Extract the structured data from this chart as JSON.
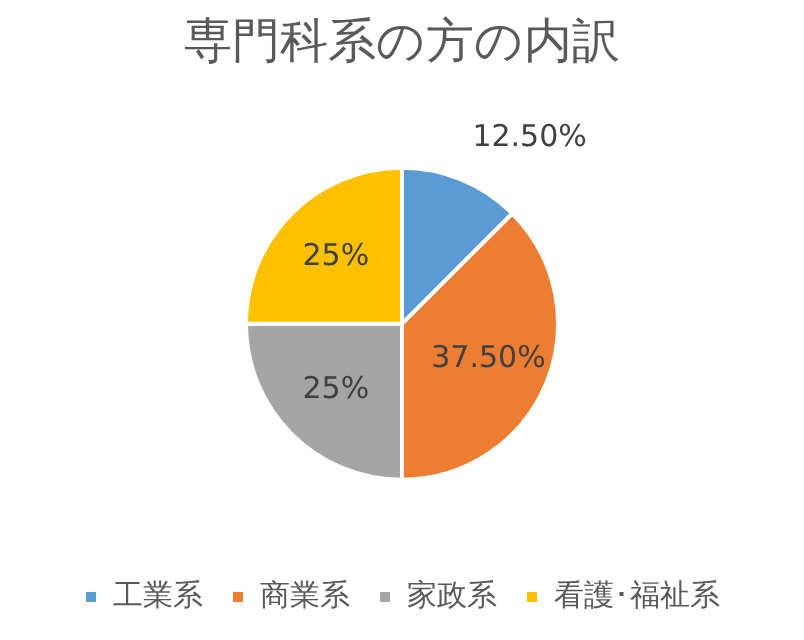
{
  "chart_data": {
    "type": "pie",
    "title": "専門科系の方の内訳",
    "categories": [
      "工業系",
      "商業系",
      "家政系",
      "看護･福祉系"
    ],
    "values": [
      12.5,
      37.5,
      25,
      25
    ],
    "colors": [
      "#5b9bd5",
      "#ed7d31",
      "#a5a5a5",
      "#ffc000"
    ],
    "value_labels": [
      "12.50%",
      "37.50%",
      "25%",
      "25%"
    ],
    "legend": "bottom"
  }
}
